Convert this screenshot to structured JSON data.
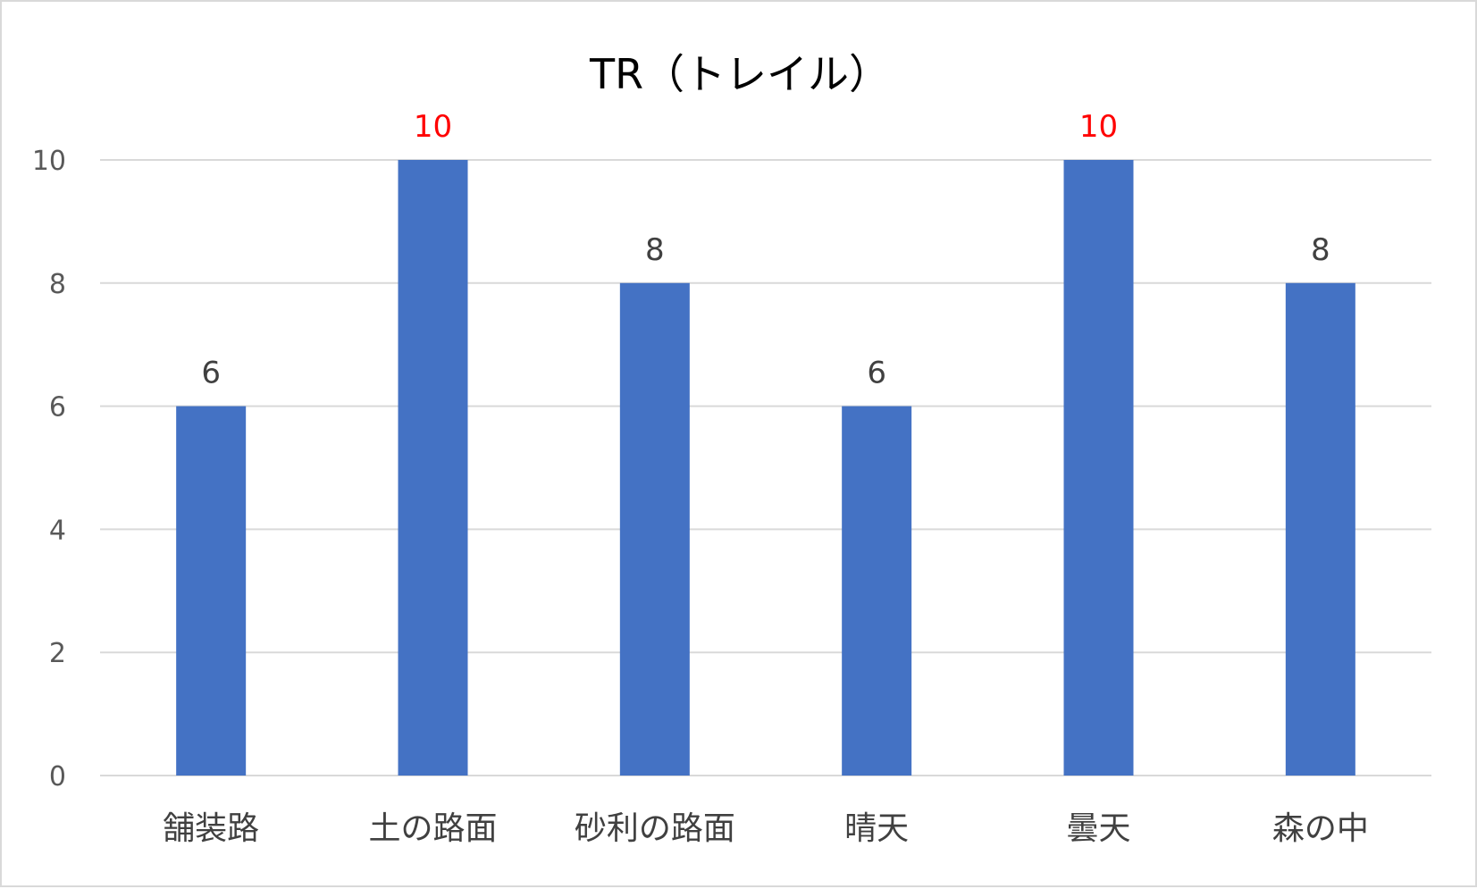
{
  "chart_data": {
    "type": "bar",
    "title": "TR（トレイル）",
    "categories": [
      "舗装路",
      "土の路面",
      "砂利の路面",
      "晴天",
      "曇天",
      "森の中"
    ],
    "values": [
      6,
      10,
      8,
      6,
      10,
      8
    ],
    "ylim": [
      0,
      10
    ],
    "yticks": [
      0,
      2,
      4,
      6,
      8,
      10
    ],
    "grid": true,
    "bar_color": "#4472c4",
    "gridline_color": "#d9d9d9",
    "label_colors": [
      "#404040",
      "#ff0000",
      "#404040",
      "#404040",
      "#ff0000",
      "#404040"
    ]
  }
}
